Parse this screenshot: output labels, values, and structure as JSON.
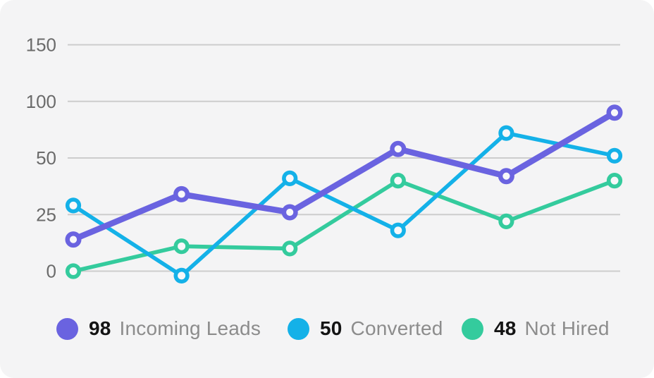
{
  "card": {
    "background_color": "#f4f4f5",
    "gridline_color": "#cdcdcd",
    "tick_label_color": "#6b6b6b",
    "marker_fill_color": "#f8f8fa"
  },
  "chart_data": {
    "type": "line",
    "title": "",
    "xlabel": "",
    "ylabel": "",
    "x_labels": [
      "",
      "",
      "",
      "",
      "",
      ""
    ],
    "yticks": [
      150,
      100,
      50,
      25,
      0
    ],
    "grid": "horizontal",
    "axis_note": "y gridlines equally spaced for tick values 0, 25, 50, 100, 150 (non-linear scale)",
    "legend_position": "bottom",
    "marker": "open-circle",
    "series": [
      {
        "name": "Incoming Leads",
        "legend_value": "98",
        "color": "#6a63e0",
        "values": [
          14,
          34,
          26,
          58,
          42,
          90
        ]
      },
      {
        "name": "Converted",
        "legend_value": "50",
        "color": "#14b1e8",
        "values": [
          29,
          -2,
          41,
          18,
          72,
          52
        ]
      },
      {
        "name": "Not Hired",
        "legend_value": "48",
        "color": "#34cb9d",
        "values": [
          0,
          11,
          10,
          40,
          22,
          40
        ]
      }
    ]
  }
}
